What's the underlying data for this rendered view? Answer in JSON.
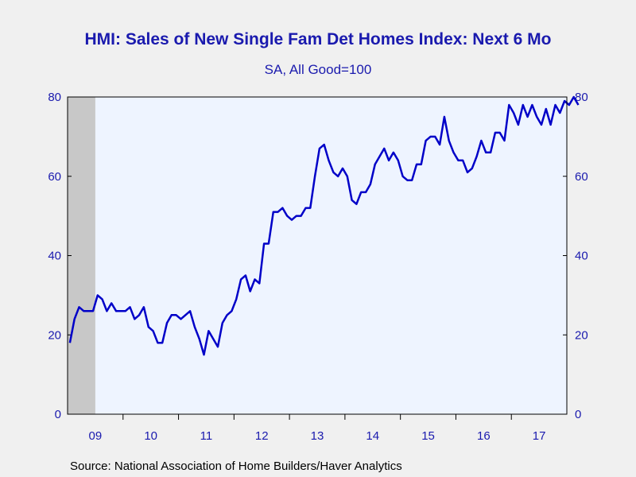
{
  "chart_data": {
    "type": "line",
    "title": "HMI: Sales of New Single Fam Det Homes Index: Next 6 Mo",
    "subtitle": "SA, All Good=100",
    "source": "Source:  National Association of Home Builders/Haver Analytics",
    "ylim": [
      0,
      80
    ],
    "yticks": [
      0,
      20,
      40,
      60,
      80
    ],
    "xlabels": [
      "09",
      "10",
      "11",
      "12",
      "13",
      "14",
      "15",
      "16",
      "17"
    ],
    "start": "2009-01",
    "end": "2017-12",
    "recession_band": [
      "2009-01",
      "2009-06"
    ],
    "line_color": "#0000c8",
    "plot_bg": "#eef4ff",
    "recession_color": "#c8c8c8",
    "series": [
      {
        "values": [
          18,
          24,
          27,
          26,
          26,
          26,
          30,
          29,
          26,
          28,
          26,
          26,
          26,
          27,
          24,
          25,
          27,
          22,
          21,
          18,
          18,
          23,
          25,
          25,
          24,
          25,
          26,
          22,
          19,
          15,
          21,
          19,
          17,
          23,
          25,
          26,
          29,
          34,
          35,
          31,
          34,
          33,
          43,
          43,
          51,
          51,
          52,
          50,
          49,
          50,
          50,
          52,
          52,
          60,
          67,
          68,
          64,
          61,
          60,
          62,
          60,
          54,
          53,
          56,
          56,
          58,
          63,
          65,
          67,
          64,
          66,
          64,
          60,
          59,
          59,
          63,
          63,
          69,
          70,
          70,
          68,
          75,
          69,
          66,
          64,
          64,
          61,
          62,
          65,
          69,
          66,
          66,
          71,
          71,
          69,
          78,
          76,
          73,
          78,
          75,
          78,
          75,
          73,
          77,
          73,
          78,
          76,
          79,
          78,
          80,
          78
        ]
      }
    ]
  }
}
